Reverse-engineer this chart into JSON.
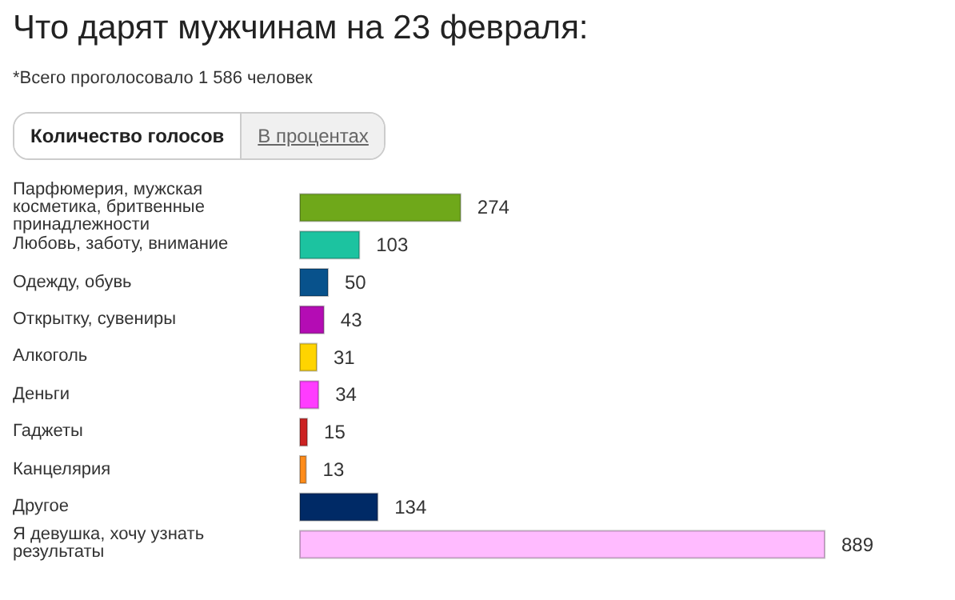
{
  "chart_data": {
    "type": "bar",
    "orientation": "horizontal",
    "title": "Что дарят мужчинам на 23 февраля:",
    "subtitle": "*Всего проголосовало 1 586 человек",
    "annotations": [
      "Количество голосов",
      "В процентах"
    ],
    "categories": [
      "Парфюмерия, мужская косметика, бритвенные принадлежности",
      "Любовь, заботу, внимание",
      "Одежду, обувь",
      "Открытку, сувениры",
      "Алкоголь",
      "Деньги",
      "Гаджеты",
      "Канцелярия",
      "Другое",
      "Я девушка, хочу узнать результаты"
    ],
    "values": [
      274,
      103,
      50,
      43,
      31,
      34,
      15,
      13,
      134,
      889
    ],
    "colors": [
      "#6fa81a",
      "#1cc3a0",
      "#08528c",
      "#b40cb4",
      "#ffd400",
      "#ff3cff",
      "#cc2222",
      "#ff8c1a",
      "#002a66",
      "#ffbbff"
    ],
    "data_labels": true,
    "grid": false,
    "tick_labels": "y"
  }
}
